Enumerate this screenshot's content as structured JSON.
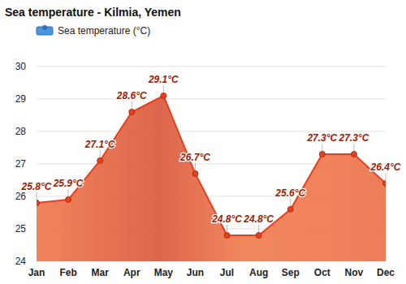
{
  "chart_data": {
    "type": "line",
    "title": "Sea temperature - Kilmia, Yemen",
    "categories": [
      "Jan",
      "Feb",
      "Mar",
      "Apr",
      "May",
      "Jun",
      "Jul",
      "Aug",
      "Sep",
      "Oct",
      "Nov",
      "Dec"
    ],
    "series": [
      {
        "name": "Sea temperature (°C)",
        "color": "#e8401c",
        "marker": "circle",
        "values": [
          25.8,
          25.9,
          27.1,
          28.6,
          29.1,
          26.7,
          24.8,
          24.8,
          25.6,
          27.3,
          27.3,
          26.4
        ],
        "value_labels": [
          "25.8°C",
          "25.9°C",
          "27.1°C",
          "28.6°C",
          "29.1°C",
          "26.7°C",
          "24.8°C",
          "24.8°C",
          "25.6°C",
          "27.3°C",
          "27.3°C",
          "26.4°C"
        ]
      }
    ],
    "ylim": [
      24,
      30
    ],
    "yticks": [
      24,
      25,
      26,
      27,
      28,
      29,
      30
    ],
    "grid": true,
    "legend": "top-left",
    "data_labels": true
  }
}
